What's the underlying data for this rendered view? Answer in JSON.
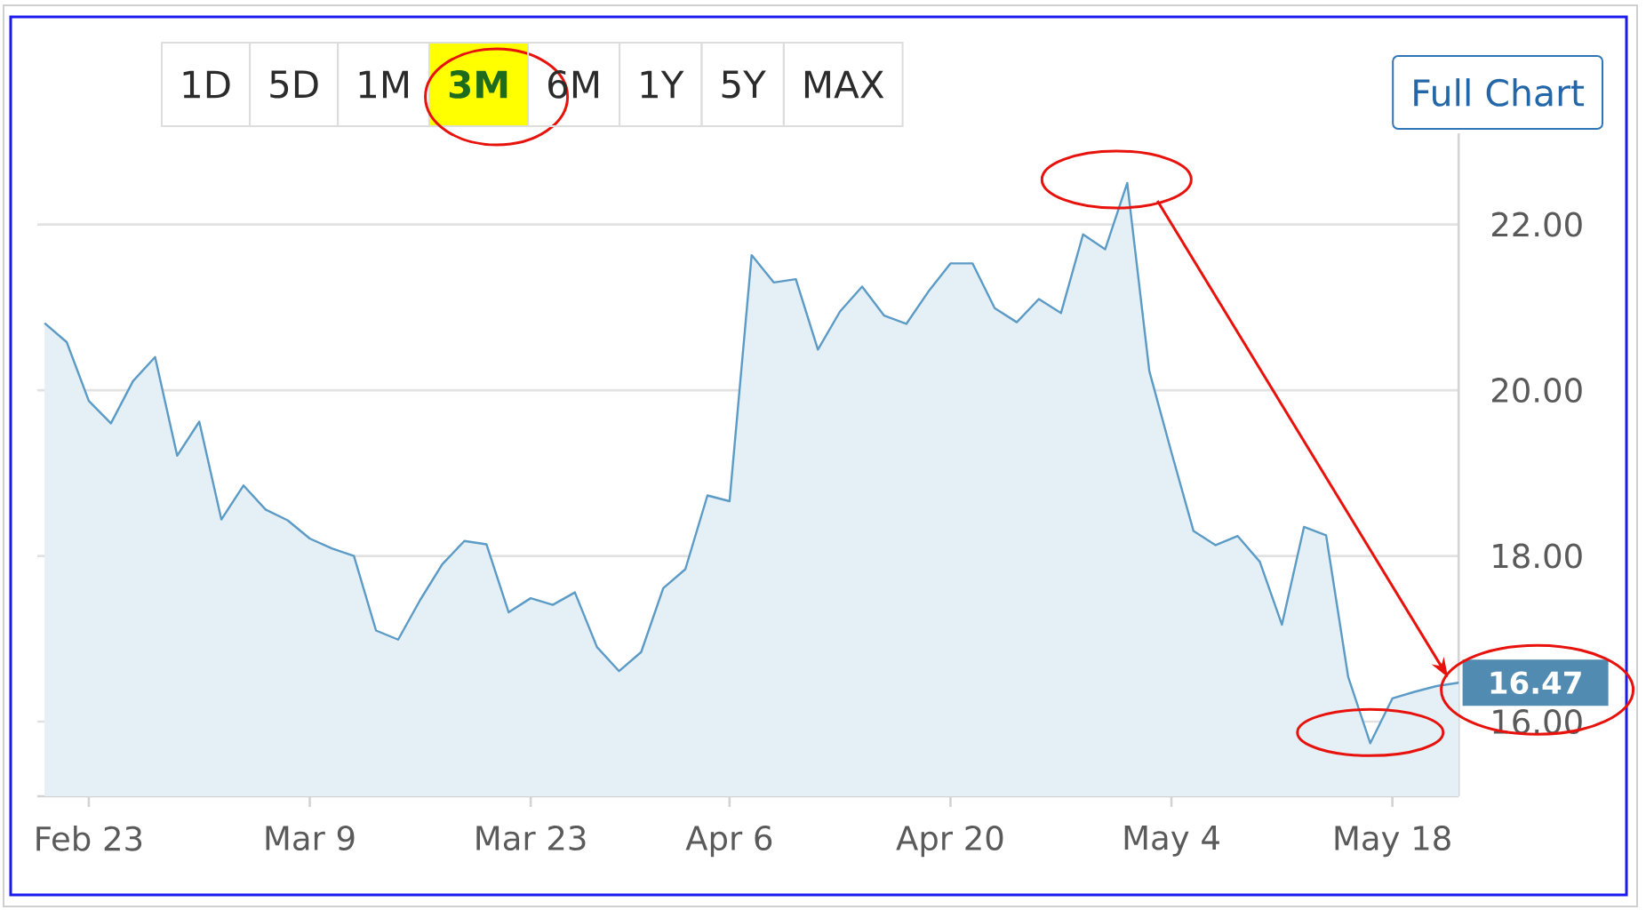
{
  "chart_data": {
    "type": "area",
    "categories": [
      null,
      null,
      "Feb 23",
      null,
      null,
      null,
      null,
      null,
      null,
      null,
      null,
      null,
      "Mar 9",
      null,
      null,
      null,
      null,
      null,
      null,
      null,
      null,
      null,
      "Mar 23",
      null,
      null,
      null,
      null,
      null,
      null,
      null,
      null,
      "Apr 6",
      null,
      null,
      null,
      null,
      null,
      null,
      null,
      null,
      null,
      "Apr 20",
      null,
      null,
      null,
      null,
      null,
      null,
      null,
      null,
      null,
      "May 4",
      null,
      null,
      null,
      null,
      null,
      null,
      null,
      null,
      null,
      "May 18",
      null,
      null,
      null
    ],
    "series": [
      {
        "color": "#5b9bc6",
        "values": [
          20.81,
          20.58,
          19.87,
          19.6,
          20.11,
          20.4,
          19.21,
          19.62,
          18.44,
          18.85,
          18.56,
          18.43,
          18.21,
          18.09,
          18.0,
          17.1,
          16.99,
          17.47,
          17.9,
          18.18,
          18.14,
          17.32,
          17.49,
          17.41,
          17.56,
          16.9,
          16.61,
          16.84,
          17.61,
          17.84,
          18.73,
          18.66,
          21.63,
          21.3,
          21.34,
          20.49,
          20.95,
          21.25,
          20.9,
          20.8,
          21.19,
          21.53,
          21.53,
          20.99,
          20.82,
          21.1,
          20.93,
          21.88,
          21.7,
          22.5,
          20.23,
          19.25,
          18.3,
          18.13,
          18.24,
          17.93,
          17.17,
          18.35,
          18.25,
          16.54,
          15.74,
          16.28,
          16.36,
          16.43,
          16.47
        ],
        "value_labels": [
          null,
          null,
          null,
          null,
          null,
          null,
          null,
          null,
          null,
          null,
          null,
          null,
          null,
          null,
          null,
          null,
          null,
          null,
          null,
          null,
          null,
          null,
          null,
          null,
          null,
          null,
          null,
          null,
          null,
          null,
          null,
          null,
          null,
          null,
          null,
          null,
          null,
          null,
          null,
          null,
          null,
          null,
          null,
          null,
          null,
          null,
          null,
          null,
          null,
          null,
          null,
          null,
          null,
          null,
          null,
          null,
          null,
          null,
          null,
          null,
          null,
          null,
          null,
          null,
          "16.47"
        ]
      }
    ],
    "ylim": [
      15.1,
      23.1
    ],
    "yticks": [
      {
        "value": 16,
        "label": "16.00"
      },
      {
        "value": 18,
        "label": "18.00"
      },
      {
        "value": 20,
        "label": "20.00"
      },
      {
        "value": 22,
        "label": "22.00"
      }
    ],
    "grid": "y",
    "annotations": [
      "1D",
      "5D",
      "1M",
      "**3M**",
      "6M",
      "1Y",
      "5Y",
      "MAX",
      "Full Chart"
    ]
  }
}
